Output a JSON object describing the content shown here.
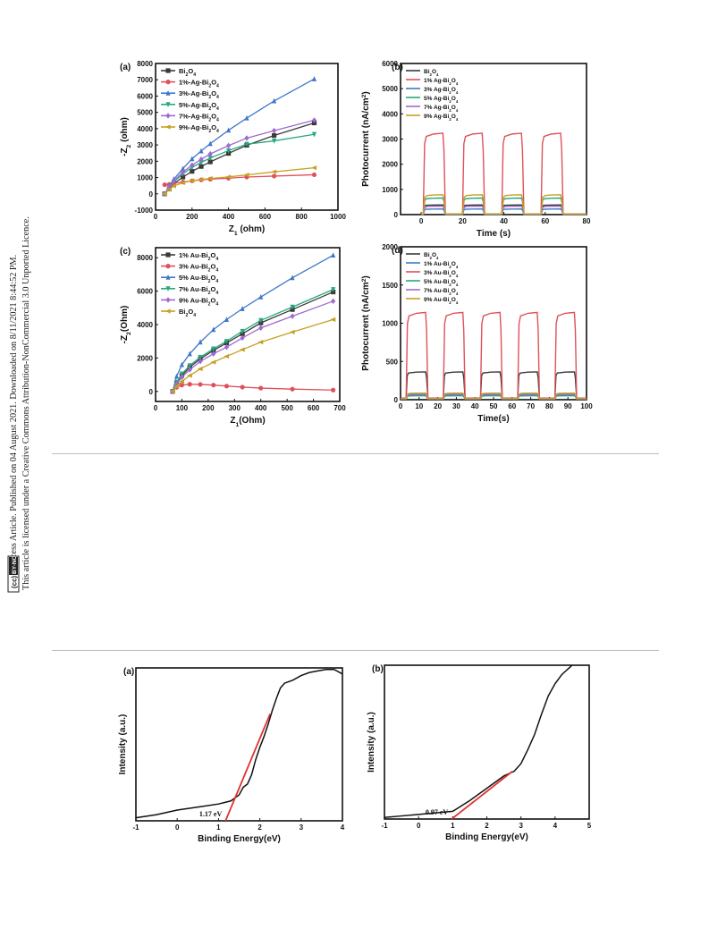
{
  "sidebar": {
    "line1": "Open Access Article. Published on 04 August 2021. Downloaded on 8/11/2021 8:44:52 PM.",
    "line2": "This article is licensed under a Creative Commons Attribution-NonCommercial 3.0 Unported Licence.",
    "badge_cc": "(cc)",
    "badge_by": "BY-NC"
  },
  "chart_data": [
    {
      "id": "a",
      "type": "line",
      "panel_label": "(a)",
      "xlabel": "Z1 (ohm)",
      "ylabel": "-Z2 (ohm)",
      "xlim": [
        0,
        1000
      ],
      "ylim": [
        -1000,
        8000
      ],
      "xticks": [
        0,
        200,
        400,
        600,
        800,
        1000
      ],
      "yticks": [
        -1000,
        0,
        1000,
        2000,
        3000,
        4000,
        5000,
        6000,
        7000,
        8000
      ],
      "legend": "top-left",
      "x": [
        50,
        75,
        100,
        150,
        200,
        250,
        300,
        400,
        500,
        650,
        870
      ],
      "series": [
        {
          "name": "Bi2O4",
          "color": "#3a3a3a",
          "marker": "square",
          "values": [
            0,
            300,
            620,
            1030,
            1380,
            1680,
            1960,
            2480,
            2980,
            3580,
            4350
          ]
        },
        {
          "name": "1%-Ag-Bi2O4",
          "color": "#e0505a",
          "marker": "circle",
          "values": [
            560,
            580,
            640,
            720,
            800,
            860,
            900,
            960,
            1030,
            1090,
            1170
          ]
        },
        {
          "name": "3%-Ag-Bi2O4",
          "color": "#3f78c8",
          "marker": "triangle",
          "values": [
            0,
            480,
            900,
            1550,
            2150,
            2630,
            3080,
            3900,
            4650,
            5700,
            7050
          ]
        },
        {
          "name": "5%-Ag-Bi2O4",
          "color": "#27a87e",
          "marker": "tri-down",
          "values": [
            0,
            380,
            740,
            1230,
            1620,
            1930,
            2200,
            2650,
            3050,
            3250,
            3650
          ]
        },
        {
          "name": "7%-Ag-Bi2O4",
          "color": "#9e6ad0",
          "marker": "diamond",
          "values": [
            0,
            420,
            800,
            1330,
            1760,
            2120,
            2450,
            2960,
            3420,
            3880,
            4520
          ]
        },
        {
          "name": "9%-Ag-Bi2O4",
          "color": "#c7a022",
          "marker": "tri-left",
          "values": [
            0,
            260,
            480,
            680,
            810,
            880,
            940,
            1040,
            1160,
            1350,
            1600
          ]
        }
      ]
    },
    {
      "id": "b",
      "type": "line",
      "panel_label": "(b)",
      "xlabel": "Time (s)",
      "ylabel": "Photocurrent (nA/cm2)",
      "xlim": [
        -10,
        80
      ],
      "ylim": [
        0,
        6000
      ],
      "xticks": [
        0,
        20,
        40,
        60,
        80
      ],
      "yticks": [
        0,
        1000,
        2000,
        3000,
        4000,
        5000,
        6000
      ],
      "legend": "top-left",
      "on_off_cycles": [
        [
          1,
          11
        ],
        [
          20,
          30
        ],
        [
          39,
          49
        ],
        [
          58,
          68
        ]
      ],
      "series": [
        {
          "name": "Bi2O4",
          "color": "#3a3a3a",
          "on": 380,
          "off": 20
        },
        {
          "name": "1% Ag-Bi2O4",
          "color": "#e0505a",
          "on": 3200,
          "off": 30
        },
        {
          "name": "3% Ag-Bi2O4",
          "color": "#3f78c8",
          "on": 220,
          "off": 10
        },
        {
          "name": "5% Ag-Bi2O4",
          "color": "#27a87e",
          "on": 650,
          "off": 20
        },
        {
          "name": "7% Ag-Bi2O4",
          "color": "#9e6ad0",
          "on": 330,
          "off": 15
        },
        {
          "name": "9% Ag-Bi2O4",
          "color": "#c7a022",
          "on": 780,
          "off": 25
        }
      ]
    },
    {
      "id": "c",
      "type": "line",
      "panel_label": "(c)",
      "xlabel": "Z1(Ohm)",
      "ylabel": "-Z2(Ohm)",
      "xlim": [
        0,
        700
      ],
      "ylim": [
        -600,
        8600
      ],
      "xticks": [
        0,
        100,
        200,
        300,
        400,
        500,
        600,
        700
      ],
      "yticks": [
        0,
        2000,
        4000,
        6000,
        8000
      ],
      "legend": "top-left",
      "x": [
        65,
        80,
        100,
        130,
        170,
        220,
        270,
        330,
        400,
        520,
        675
      ],
      "series": [
        {
          "name": "1% Au-Bi2O4",
          "color": "#3a3a3a",
          "marker": "square",
          "values": [
            0,
            500,
            950,
            1450,
            1950,
            2450,
            2900,
            3450,
            4100,
            4900,
            5950
          ]
        },
        {
          "name": "3% Au-Bi2O4",
          "color": "#e0505a",
          "marker": "circle",
          "values": [
            0,
            250,
            380,
            430,
            420,
            380,
            320,
            260,
            200,
            140,
            80
          ]
        },
        {
          "name": "5% Au-Bi2O4",
          "color": "#3f78c8",
          "marker": "triangle",
          "values": [
            0,
            900,
            1600,
            2250,
            2950,
            3700,
            4300,
            4950,
            5650,
            6800,
            8150
          ]
        },
        {
          "name": "7% Au-Bi2O4",
          "color": "#27a87e",
          "marker": "tri-down",
          "values": [
            0,
            550,
            1050,
            1550,
            2050,
            2550,
            3000,
            3600,
            4250,
            5050,
            6100
          ]
        },
        {
          "name": "9% Au-Bi2O4",
          "color": "#9e6ad0",
          "marker": "diamond",
          "values": [
            0,
            450,
            850,
            1300,
            1800,
            2250,
            2650,
            3200,
            3800,
            4500,
            5400
          ]
        },
        {
          "name": "Bi2O4",
          "color": "#c7a022",
          "marker": "tri-left",
          "values": [
            0,
            300,
            600,
            950,
            1350,
            1750,
            2100,
            2500,
            2950,
            3550,
            4300
          ]
        }
      ]
    },
    {
      "id": "d",
      "type": "line",
      "panel_label": "(d)",
      "xlabel": "Time(s)",
      "ylabel": "Photocurrent (nA/cm2)",
      "xlim": [
        0,
        100
      ],
      "ylim": [
        0,
        2000
      ],
      "xticks": [
        0,
        10,
        20,
        30,
        40,
        50,
        60,
        70,
        80,
        90,
        100
      ],
      "yticks": [
        0,
        500,
        1000,
        1500,
        2000
      ],
      "legend": "top-left",
      "on_off_cycles": [
        [
          3,
          14
        ],
        [
          23,
          34
        ],
        [
          43,
          54
        ],
        [
          63,
          74
        ],
        [
          83,
          94
        ]
      ],
      "series": [
        {
          "name": "Bi2O4",
          "color": "#3a3a3a",
          "on": 360,
          "off": 20
        },
        {
          "name": "1% Au-Bi2O4",
          "color": "#3f78c8",
          "on": 60,
          "off": 10
        },
        {
          "name": "3% Au-Bi2O4",
          "color": "#e0505a",
          "on": 1130,
          "off": 20
        },
        {
          "name": "5% Au-Bi2O4",
          "color": "#27a87e",
          "on": 50,
          "off": 10
        },
        {
          "name": "7% Au-Bi2O4",
          "color": "#9e6ad0",
          "on": 70,
          "off": 10
        },
        {
          "name": "9% Au-Bi2O4",
          "color": "#c7a022",
          "on": 85,
          "off": 15
        }
      ]
    },
    {
      "id": "e",
      "type": "line",
      "panel_label": "(a)",
      "xlabel": "Binding Energy(eV)",
      "ylabel": "Intensity (a.u.)",
      "xlim": [
        -1,
        4
      ],
      "xticks": [
        -1,
        0,
        1,
        2,
        3,
        4
      ],
      "ylim": [
        0,
        100
      ],
      "annotation": "1.17 eV",
      "fit": {
        "color": "#e03030",
        "from": [
          1.17,
          0
        ],
        "to": [
          2.25,
          70
        ]
      },
      "series": [
        {
          "name": "",
          "color": "#111111",
          "x": [
            -1,
            -0.5,
            0,
            0.5,
            1.0,
            1.3,
            1.5,
            1.6,
            1.7,
            1.8,
            1.9,
            2.0,
            2.1,
            2.2,
            2.3,
            2.4,
            2.5,
            2.6,
            2.8,
            3.0,
            3.2,
            3.4,
            3.6,
            3.8,
            4.0
          ],
          "y": [
            2,
            4,
            7,
            9,
            11,
            13,
            17,
            22,
            24,
            30,
            40,
            48,
            55,
            63,
            72,
            80,
            87,
            90,
            92,
            95,
            97,
            98,
            99,
            99,
            96
          ]
        }
      ]
    },
    {
      "id": "f",
      "type": "line",
      "panel_label": "(b)",
      "xlabel": "Binding Energy(eV)",
      "ylabel": "Intensity (a.u.)",
      "xlim": [
        -1,
        5
      ],
      "xticks": [
        -1,
        0,
        1,
        2,
        3,
        4,
        5
      ],
      "ylim": [
        0,
        100
      ],
      "annotation": "0.97 eV",
      "fit": {
        "color": "#e03030",
        "from": [
          0.97,
          0
        ],
        "to": [
          2.75,
          31
        ]
      },
      "series": [
        {
          "name": "",
          "color": "#111111",
          "x": [
            -1,
            -0.5,
            0,
            0.5,
            1.0,
            1.5,
            2.0,
            2.5,
            2.8,
            3.0,
            3.2,
            3.4,
            3.6,
            3.8,
            4.0,
            4.2,
            4.5
          ],
          "y": [
            1,
            2,
            3,
            4,
            5,
            12,
            20,
            28,
            31,
            36,
            45,
            55,
            68,
            80,
            88,
            94,
            100
          ]
        }
      ]
    }
  ]
}
